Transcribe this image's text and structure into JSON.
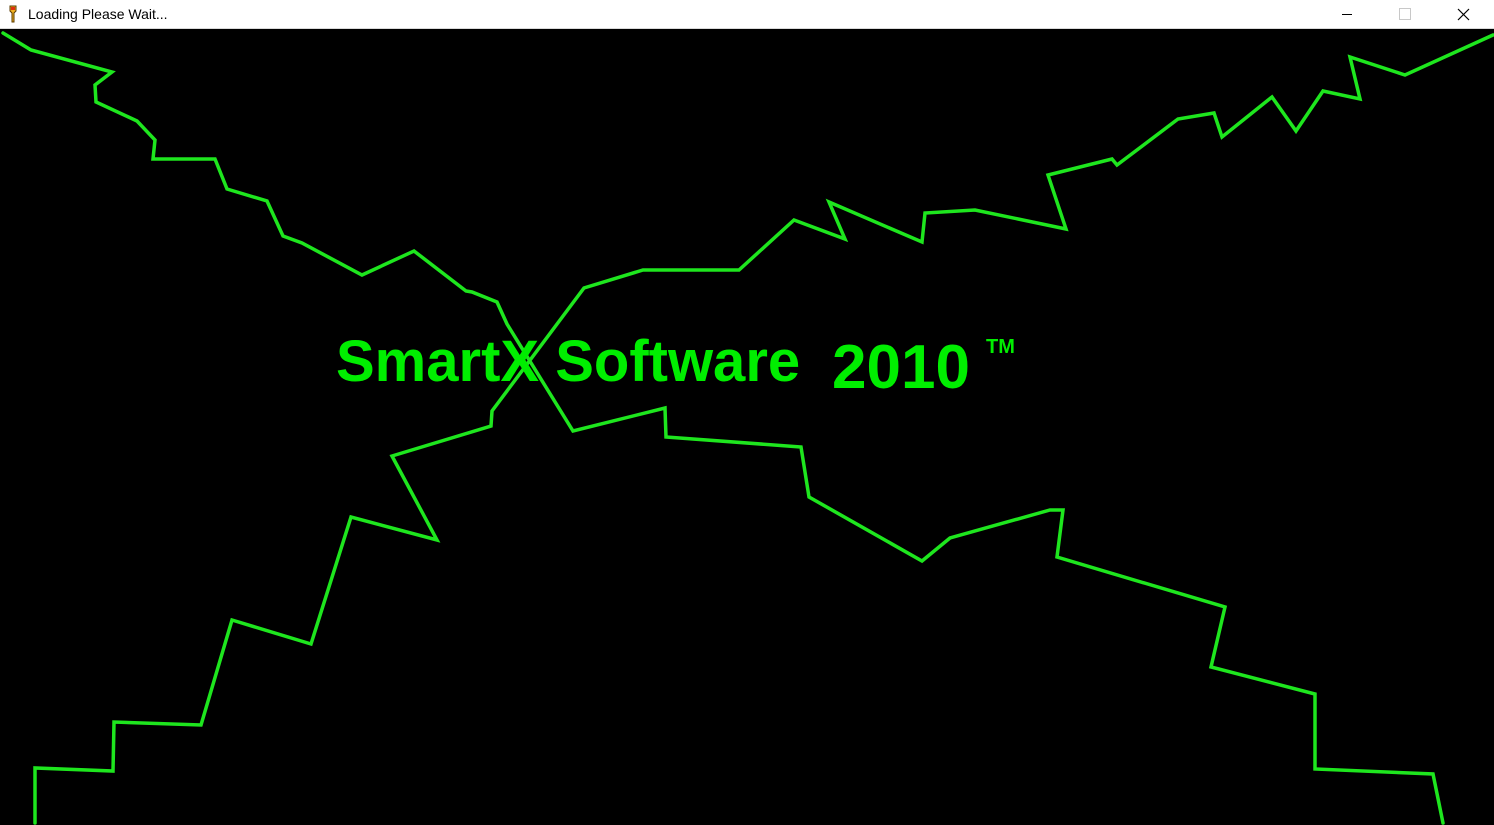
{
  "window": {
    "title": "Loading Please Wait...",
    "icon": "torch-icon",
    "controls": {
      "minimize": "minimize-icon",
      "maximize": "maximize-icon",
      "close": "close-icon"
    }
  },
  "splash": {
    "product_name": "SmartX Software",
    "year": "2010",
    "trademark": "TM"
  },
  "colors": {
    "accent": "#00ee00",
    "background": "#000000",
    "titlebar": "#ffffff"
  }
}
